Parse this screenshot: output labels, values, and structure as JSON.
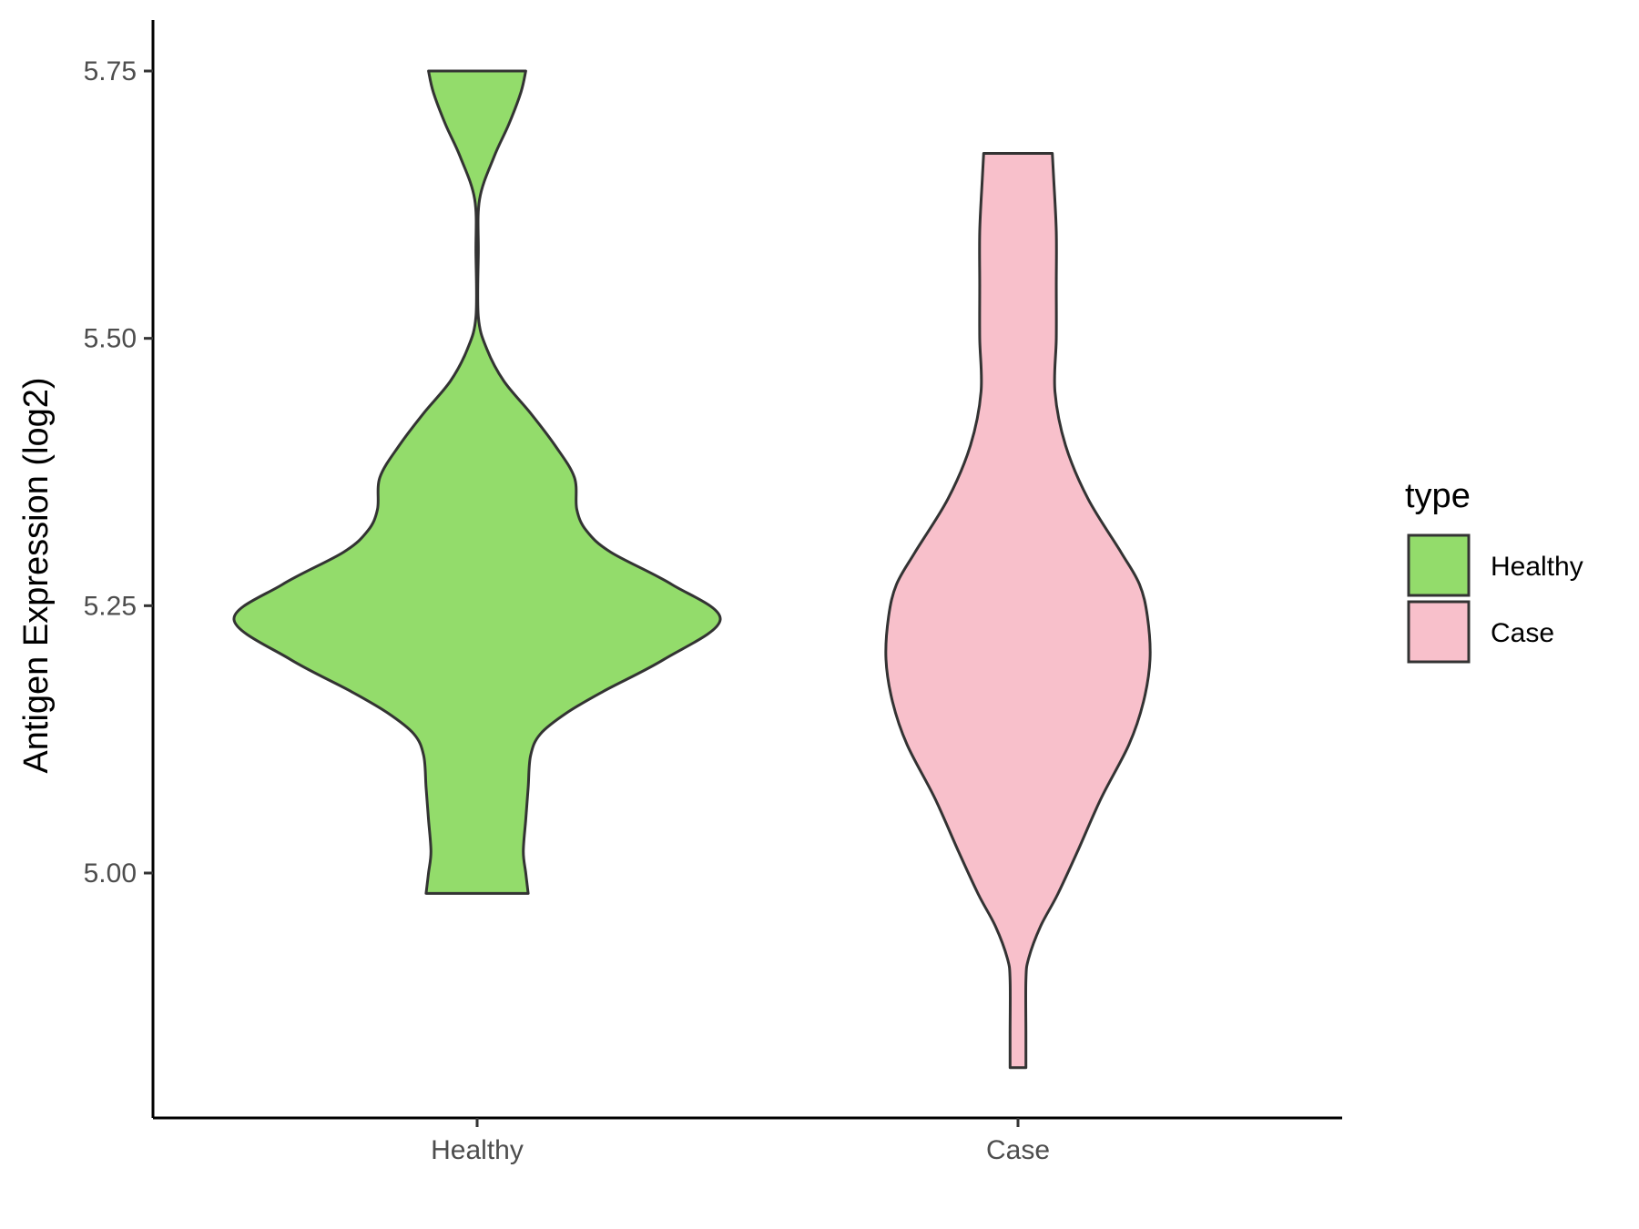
{
  "chart_data": {
    "type": "violin",
    "categories": [
      "Healthy",
      "Case"
    ],
    "ylabel": "Antigen Expression (log2)",
    "xlabel": "",
    "ylim": [
      4.77,
      5.8
    ],
    "yticks": [
      5.0,
      5.25,
      5.5,
      5.75
    ],
    "ytick_labels": [
      "5.00",
      "5.25",
      "5.50",
      "5.75"
    ],
    "grid": false,
    "legend": {
      "title": "type",
      "position": "right",
      "entries": [
        {
          "label": "Healthy",
          "color": "#93DC6B"
        },
        {
          "label": "Case",
          "color": "#F8C0CB"
        }
      ]
    },
    "series": [
      {
        "category": "Healthy",
        "color": "#93DC6B",
        "range": [
          4.981,
          5.75
        ],
        "density_profile": [
          [
            4.981,
            0.21
          ],
          [
            5.0,
            0.2
          ],
          [
            5.02,
            0.19
          ],
          [
            5.05,
            0.2
          ],
          [
            5.08,
            0.21
          ],
          [
            5.11,
            0.22
          ],
          [
            5.13,
            0.26
          ],
          [
            5.15,
            0.37
          ],
          [
            5.17,
            0.52
          ],
          [
            5.2,
            0.77
          ],
          [
            5.237,
            1.0
          ],
          [
            5.27,
            0.8
          ],
          [
            5.3,
            0.55
          ],
          [
            5.32,
            0.45
          ],
          [
            5.34,
            0.41
          ],
          [
            5.37,
            0.4
          ],
          [
            5.4,
            0.32
          ],
          [
            5.43,
            0.22
          ],
          [
            5.46,
            0.11
          ],
          [
            5.49,
            0.04
          ],
          [
            5.52,
            0.005
          ],
          [
            5.58,
            0.005
          ],
          [
            5.63,
            0.01
          ],
          [
            5.67,
            0.07
          ],
          [
            5.7,
            0.13
          ],
          [
            5.73,
            0.18
          ],
          [
            5.75,
            0.2
          ]
        ]
      },
      {
        "category": "Case",
        "color": "#F8C0CB",
        "range": [
          4.818,
          5.673
        ],
        "density_profile": [
          [
            4.818,
            0.06
          ],
          [
            4.85,
            0.06
          ],
          [
            4.9,
            0.06
          ],
          [
            4.92,
            0.08
          ],
          [
            4.95,
            0.17
          ],
          [
            4.98,
            0.3
          ],
          [
            5.02,
            0.45
          ],
          [
            5.07,
            0.63
          ],
          [
            5.12,
            0.84
          ],
          [
            5.16,
            0.95
          ],
          [
            5.2,
            1.0
          ],
          [
            5.24,
            0.98
          ],
          [
            5.27,
            0.92
          ],
          [
            5.3,
            0.78
          ],
          [
            5.35,
            0.53
          ],
          [
            5.4,
            0.36
          ],
          [
            5.45,
            0.28
          ],
          [
            5.5,
            0.29
          ],
          [
            5.55,
            0.29
          ],
          [
            5.6,
            0.29
          ],
          [
            5.65,
            0.27
          ],
          [
            5.673,
            0.26
          ]
        ]
      }
    ]
  }
}
